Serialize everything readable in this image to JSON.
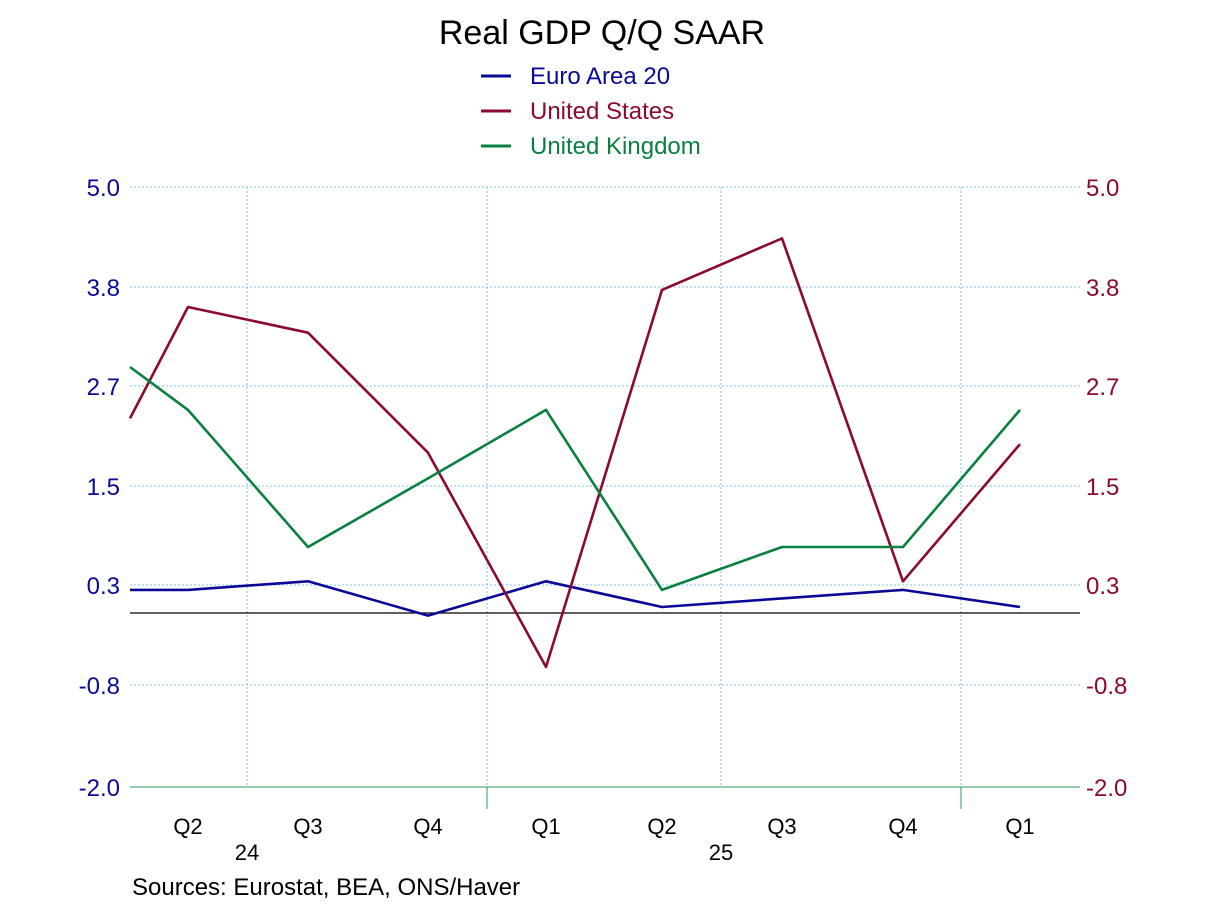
{
  "colors": {
    "euro": "#0a0a96",
    "us": "#8b0a2e",
    "uk": "#0a8040",
    "grid": "#7fc4e8",
    "zero_line": "#000000",
    "text": "#000000"
  },
  "source_note": "Sources:  Eurostat, BEA, ONS/Haver",
  "chart_data": {
    "type": "line",
    "title": "Real GDP Q/Q SAAR",
    "x": [
      "Q2",
      "Q3",
      "Q4",
      "Q1",
      "Q2",
      "Q3",
      "Q4",
      "Q1"
    ],
    "year_labels": [
      {
        "label": "24",
        "quarter": "Q2"
      },
      {
        "label": "25",
        "quarter": "Q2"
      }
    ],
    "series": [
      {
        "name": "Euro Area 20",
        "color_key": "euro",
        "axis": "left",
        "values": [
          0.3,
          0.4,
          0.0,
          0.4,
          0.1,
          0.2,
          0.3,
          0.1
        ]
      },
      {
        "name": "United States",
        "color_key": "us",
        "axis": "right",
        "values": [
          3.6,
          3.3,
          1.9,
          -0.6,
          3.8,
          4.4,
          0.4,
          2.0
        ]
      },
      {
        "name": "United Kingdom",
        "color_key": "uk",
        "axis": "left",
        "values": [
          2.4,
          0.8,
          null,
          2.4,
          0.3,
          0.8,
          0.8,
          2.4
        ]
      }
    ],
    "left_ticks": [
      "5.0",
      "3.8",
      "2.7",
      "1.5",
      "0.3",
      "-0.8",
      "-2.0"
    ],
    "right_ticks": [
      "5.0",
      "3.8",
      "2.7",
      "1.5",
      "0.3",
      "-0.8",
      "-2.0"
    ],
    "ylim": [
      -2.0,
      5.0
    ],
    "grid": true,
    "legend_position": "top-center"
  }
}
